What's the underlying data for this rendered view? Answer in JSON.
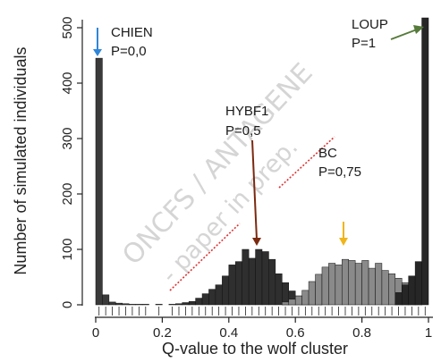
{
  "chart_data": {
    "type": "bar",
    "xlabel": "Q-value to the wolf cluster",
    "ylabel": "Number of simulated individuals",
    "xlim": [
      -0.01,
      1.01
    ],
    "ylim": [
      -10,
      520
    ],
    "x_ticks": [
      "0",
      "0.2",
      "0.4",
      "0.6",
      "0.8",
      "1"
    ],
    "y_ticks": [
      "0",
      "100",
      "200",
      "300",
      "400",
      "500"
    ],
    "bin_width": 0.02,
    "series": [
      {
        "name": "CHIEN",
        "color": "#3a3a3a",
        "bins": [
          {
            "x": 0.0,
            "value": 445
          },
          {
            "x": 0.02,
            "value": 18
          },
          {
            "x": 0.04,
            "value": 5
          },
          {
            "x": 0.06,
            "value": 3
          },
          {
            "x": 0.08,
            "value": 2
          },
          {
            "x": 0.1,
            "value": 1
          },
          {
            "x": 0.12,
            "value": 1
          },
          {
            "x": 0.14,
            "value": 1
          },
          {
            "x": 0.18,
            "value": 1
          }
        ]
      },
      {
        "name": "HYBF1",
        "color": "#2f2f2f",
        "bins": [
          {
            "x": 0.22,
            "value": 1
          },
          {
            "x": 0.24,
            "value": 2
          },
          {
            "x": 0.26,
            "value": 4
          },
          {
            "x": 0.28,
            "value": 6
          },
          {
            "x": 0.3,
            "value": 12
          },
          {
            "x": 0.32,
            "value": 20
          },
          {
            "x": 0.34,
            "value": 28
          },
          {
            "x": 0.36,
            "value": 36
          },
          {
            "x": 0.38,
            "value": 52
          },
          {
            "x": 0.4,
            "value": 72
          },
          {
            "x": 0.42,
            "value": 78
          },
          {
            "x": 0.44,
            "value": 100
          },
          {
            "x": 0.46,
            "value": 84
          },
          {
            "x": 0.48,
            "value": 100
          },
          {
            "x": 0.5,
            "value": 96
          },
          {
            "x": 0.52,
            "value": 82
          },
          {
            "x": 0.54,
            "value": 56
          },
          {
            "x": 0.56,
            "value": 40
          },
          {
            "x": 0.58,
            "value": 25
          },
          {
            "x": 0.6,
            "value": 16
          },
          {
            "x": 0.62,
            "value": 8
          },
          {
            "x": 0.64,
            "value": 4
          },
          {
            "x": 0.66,
            "value": 2
          }
        ]
      },
      {
        "name": "BC",
        "color": "#8a8a8a",
        "bins": [
          {
            "x": 0.56,
            "value": 5
          },
          {
            "x": 0.58,
            "value": 10
          },
          {
            "x": 0.6,
            "value": 16
          },
          {
            "x": 0.62,
            "value": 26
          },
          {
            "x": 0.64,
            "value": 42
          },
          {
            "x": 0.66,
            "value": 55
          },
          {
            "x": 0.68,
            "value": 68
          },
          {
            "x": 0.7,
            "value": 75
          },
          {
            "x": 0.72,
            "value": 72
          },
          {
            "x": 0.74,
            "value": 82
          },
          {
            "x": 0.76,
            "value": 80
          },
          {
            "x": 0.78,
            "value": 75
          },
          {
            "x": 0.8,
            "value": 80
          },
          {
            "x": 0.82,
            "value": 66
          },
          {
            "x": 0.84,
            "value": 75
          },
          {
            "x": 0.86,
            "value": 62
          },
          {
            "x": 0.88,
            "value": 56
          },
          {
            "x": 0.9,
            "value": 48
          },
          {
            "x": 0.92,
            "value": 40
          },
          {
            "x": 0.94,
            "value": 28
          },
          {
            "x": 0.96,
            "value": 16
          }
        ]
      },
      {
        "name": "LOUP",
        "color": "#262626",
        "bins": [
          {
            "x": 0.9,
            "value": 22
          },
          {
            "x": 0.92,
            "value": 36
          },
          {
            "x": 0.94,
            "value": 52
          },
          {
            "x": 0.96,
            "value": 78
          },
          {
            "x": 0.98,
            "value": 520
          }
        ]
      }
    ],
    "annotations": [
      {
        "name": "CHIEN",
        "label": "CHIEN",
        "p": "P=0,0",
        "arrow_color": "#2f86d8"
      },
      {
        "name": "HYBF1",
        "label": "HYBF1",
        "p": "P=0,5",
        "arrow_color": "#7a2a10"
      },
      {
        "name": "BC",
        "label": "BC",
        "p": "P=0,75",
        "arrow_color": "#f0b51c"
      },
      {
        "name": "LOUP",
        "label": "LOUP",
        "p": "P=1",
        "arrow_color": "#557a3a"
      }
    ],
    "watermark": [
      "ONCFS / ANTAGENE",
      "- paper in prep."
    ]
  }
}
